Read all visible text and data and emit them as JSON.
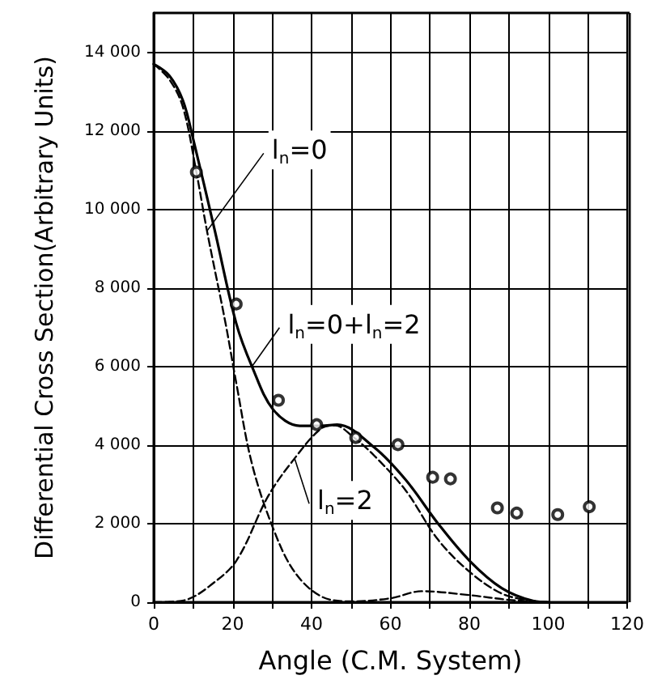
{
  "chart_data": {
    "type": "line",
    "xlabel": "Angle (C.M. System)",
    "ylabel": "Differential Cross Section(Arbitrary Units)",
    "xlim": [
      0,
      120
    ],
    "ylim": [
      0,
      15000
    ],
    "xticks": [
      0,
      {
        "value": 10,
        "label": null
      },
      20,
      {
        "value": 30,
        "label": null
      },
      40,
      {
        "value": 50,
        "label": null
      },
      60,
      {
        "value": 70,
        "label": null
      },
      80,
      {
        "value": 90,
        "label": null
      },
      100,
      {
        "value": 110,
        "label": null
      },
      120
    ],
    "yticks": [
      0,
      {
        "value": 2000,
        "label": "2 000"
      },
      {
        "value": 4000,
        "label": "4 000"
      },
      {
        "value": 6000,
        "label": "6 000"
      },
      {
        "value": 8000,
        "label": "8 000"
      },
      {
        "value": 10000,
        "label": "10 000"
      },
      {
        "value": 12000,
        "label": "12 000"
      },
      {
        "value": 14000,
        "label": "14 000"
      }
    ],
    "grid": true,
    "legend": false,
    "series": [
      {
        "name": "l$_{n}$=0",
        "color": "#000000",
        "line_style": "dashed",
        "marker": "none",
        "x": [
          0,
          4,
          7.4,
          10.8,
          13.5,
          18.2,
          20.9,
          24.9,
          30.3,
          35.7,
          42.4,
          50,
          60,
          68,
          80,
          90,
          100
        ],
        "values": [
          13700,
          13300,
          12600,
          10950,
          9450,
          7100,
          5590,
          3520,
          1870,
          770,
          150,
          20,
          100,
          280,
          180,
          60,
          0
        ]
      },
      {
        "name": "l$_{n}$=0+l$_{n}$=2",
        "color": "#000000",
        "line_style": "solid",
        "marker": "none",
        "x": [
          0,
          4,
          7.4,
          10,
          15.5,
          20.9,
          24.9,
          30.3,
          37,
          42.4,
          46.5,
          55.9,
          63.9,
          72,
          80.1,
          88.2,
          96.3,
          100
        ],
        "values": [
          13700,
          13400,
          12770,
          11790,
          9450,
          7100,
          6000,
          4900,
          4490,
          4490,
          4520,
          3940,
          3110,
          2010,
          1050,
          360,
          30,
          0
        ]
      },
      {
        "name": "l$_{n}$=2",
        "color": "#000000",
        "line_style": "dashed",
        "marker": "none",
        "x": [
          0,
          4,
          8.8,
          14,
          20.9,
          29,
          35.7,
          42.4,
          46,
          50.5,
          55.9,
          63.9,
          72,
          80.1,
          88.2,
          95,
          100
        ],
        "values": [
          0,
          10,
          80,
          400,
          1050,
          2700,
          3660,
          4420,
          4500,
          4210,
          3730,
          2840,
          1600,
          770,
          220,
          50,
          0
        ]
      },
      {
        "type": "scatter",
        "color": "#000000",
        "marker": "circle",
        "x": [
          10.8,
          20.9,
          31.6,
          41.3,
          51.2,
          61.9,
          70.7,
          75.2,
          87.1,
          92,
          102.4,
          110.4
        ],
        "values": [
          10950,
          7590,
          5140,
          4520,
          4190,
          4010,
          3180,
          3140,
          2400,
          2270,
          2230,
          2430
        ]
      }
    ]
  }
}
